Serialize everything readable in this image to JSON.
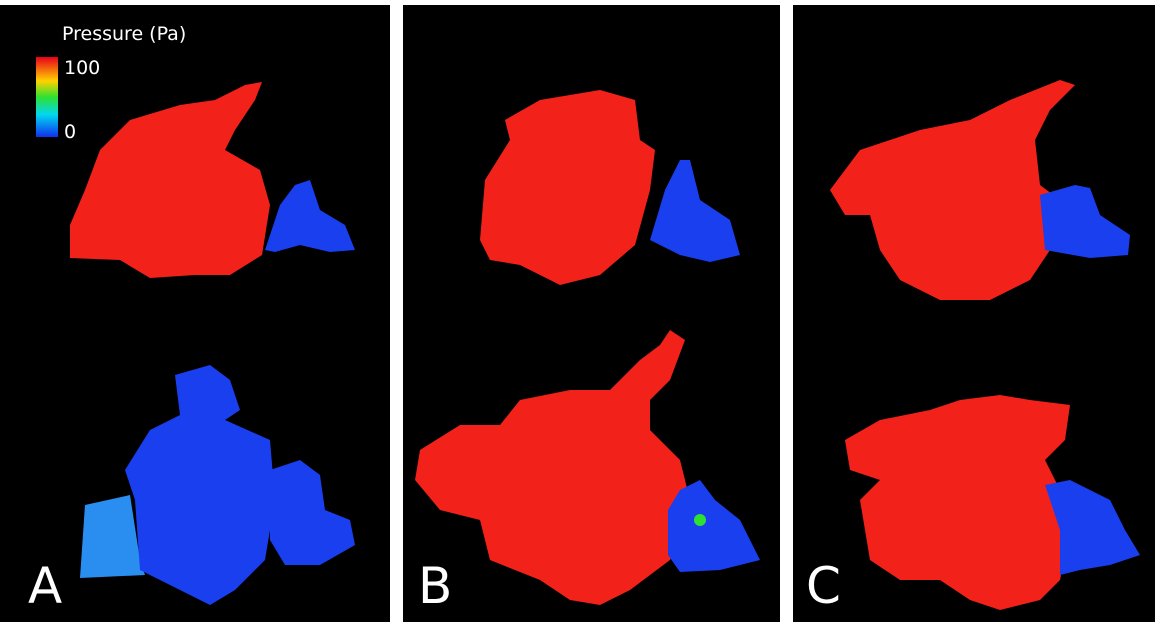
{
  "colorbar": {
    "title": "Pressure (Pa)",
    "max": 100,
    "min": 0
  },
  "panels": [
    {
      "label": "A"
    },
    {
      "label": "B"
    },
    {
      "label": "C"
    }
  ]
}
